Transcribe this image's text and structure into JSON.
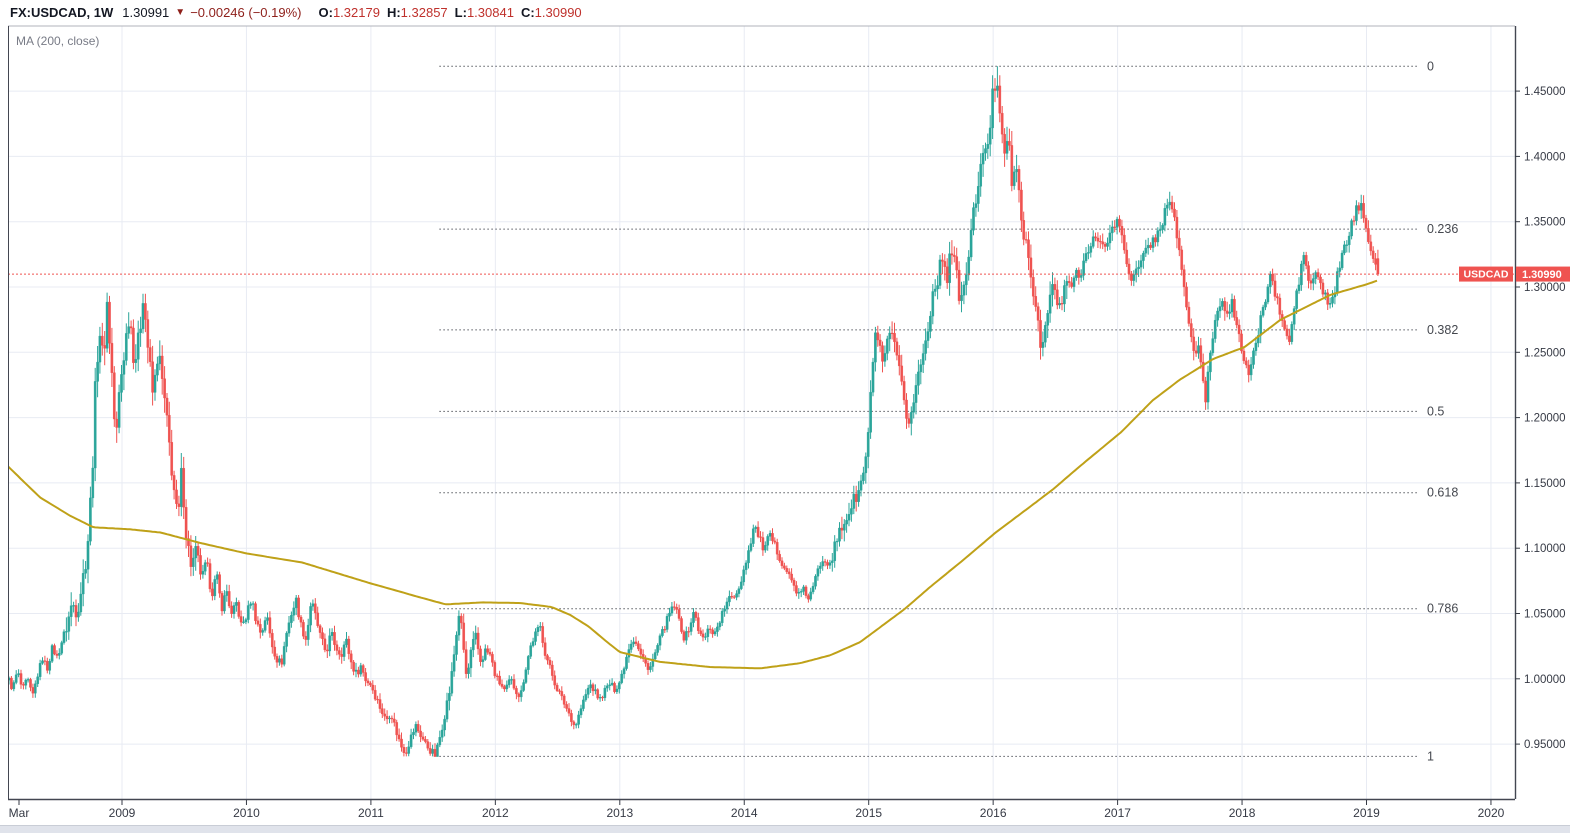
{
  "header": {
    "symbol_interval": "FX:USDCAD, 1W",
    "last_price": "1.30991",
    "direction_icon": "▼",
    "change": "−0.00246 (−0.19%)",
    "open_label": "O:",
    "open_value": "1.32179",
    "high_label": "H:",
    "high_value": "1.32857",
    "low_label": "L:",
    "low_value": "1.30841",
    "close_label": "C:",
    "close_value": "1.30990"
  },
  "legend": {
    "ma_label": "MA (200, close)"
  },
  "price_axis": {
    "current_badge_symbol": "USDCAD",
    "current_badge_value": "1.30990"
  },
  "colors": {
    "up": "#2ba59a",
    "down": "#ef5350",
    "ma": "#bfa118",
    "price_line": "#ef5350",
    "fib_line": "#55585f",
    "grid": "#e8ebf3",
    "axis_text": "#363a45",
    "fib_text": "#45484f",
    "frame_dark": "#434651",
    "frame_light": "#b0b3bb",
    "badge_bg": "#ef5350",
    "badge_text": "#ffffff"
  },
  "chart_data": {
    "type": "candlestick",
    "title": "FX:USDCAD weekly chart with MA(200, close) and Fibonacci retracement",
    "symbol": "FX:USDCAD",
    "interval": "1W",
    "x_axis": {
      "labels": [
        "Mar",
        "2009",
        "2010",
        "2011",
        "2012",
        "2013",
        "2014",
        "2015",
        "2016",
        "2017",
        "2018",
        "2019",
        "2020"
      ],
      "grid": true
    },
    "y_axis": {
      "tick_values": [
        1.45,
        1.4,
        1.35,
        1.3,
        1.25,
        1.2,
        1.15,
        1.1,
        1.05,
        1.0,
        0.95
      ],
      "decimals": 5,
      "grid": true,
      "position": "right"
    },
    "ylim": [
      0.908,
      1.5006
    ],
    "current_price": 1.3099,
    "last_ohlc": {
      "o": 1.32179,
      "h": 1.32857,
      "l": 1.30841,
      "c": 1.3099
    },
    "extremes": {
      "high": 1.469,
      "high_time": 2016.04,
      "low": 0.9406,
      "low_time": 2011.52
    },
    "fib_levels": [
      {
        "label": "0",
        "price": 1.469
      },
      {
        "label": "0.236",
        "price": 1.34428
      },
      {
        "label": "0.382",
        "price": 1.26713
      },
      {
        "label": "0.5",
        "price": 1.2048
      },
      {
        "label": "0.618",
        "price": 1.14247
      },
      {
        "label": "0.786",
        "price": 1.05367
      },
      {
        "label": "1",
        "price": 0.9406
      }
    ],
    "fib_span": {
      "start_time": 2011.55,
      "end_time": 2019.42
    },
    "ma200": [
      [
        2008.08,
        1.163
      ],
      [
        2008.34,
        1.139
      ],
      [
        2008.58,
        1.125
      ],
      [
        2008.77,
        1.116
      ],
      [
        2009.06,
        1.1145
      ],
      [
        2009.31,
        1.112
      ],
      [
        2009.63,
        1.104
      ],
      [
        2010.0,
        1.096
      ],
      [
        2010.45,
        1.089
      ],
      [
        2011.0,
        1.073
      ],
      [
        2011.39,
        1.0625
      ],
      [
        2011.6,
        1.057
      ],
      [
        2011.9,
        1.0585
      ],
      [
        2012.2,
        1.058
      ],
      [
        2012.45,
        1.055
      ],
      [
        2012.6,
        1.049
      ],
      [
        2012.75,
        1.04
      ],
      [
        2012.9,
        1.028
      ],
      [
        2013.0,
        1.0205
      ],
      [
        2013.32,
        1.013
      ],
      [
        2013.73,
        1.009
      ],
      [
        2014.13,
        1.008
      ],
      [
        2014.45,
        1.012
      ],
      [
        2014.69,
        1.018
      ],
      [
        2014.93,
        1.028
      ],
      [
        2015.29,
        1.0535
      ],
      [
        2015.49,
        1.07
      ],
      [
        2015.76,
        1.091
      ],
      [
        2016.02,
        1.112
      ],
      [
        2016.3,
        1.132
      ],
      [
        2016.48,
        1.145
      ],
      [
        2016.7,
        1.163
      ],
      [
        2017.03,
        1.189
      ],
      [
        2017.28,
        1.213
      ],
      [
        2017.5,
        1.229
      ],
      [
        2017.77,
        1.245
      ],
      [
        2018.02,
        1.254
      ],
      [
        2018.31,
        1.275
      ],
      [
        2018.71,
        1.294
      ],
      [
        2019.0,
        1.302
      ],
      [
        2019.09,
        1.305
      ]
    ],
    "close_path": [
      [
        2008.08,
        1.002
      ],
      [
        2008.12,
        0.992
      ],
      [
        2008.16,
        1.006
      ],
      [
        2008.2,
        0.991
      ],
      [
        2008.24,
        1.0
      ],
      [
        2008.28,
        0.986
      ],
      [
        2008.32,
        1.002
      ],
      [
        2008.36,
        1.016
      ],
      [
        2008.4,
        1.008
      ],
      [
        2008.44,
        1.024
      ],
      [
        2008.48,
        1.016
      ],
      [
        2008.52,
        1.03
      ],
      [
        2008.56,
        1.042
      ],
      [
        2008.6,
        1.058
      ],
      [
        2008.64,
        1.052
      ],
      [
        2008.68,
        1.074
      ],
      [
        2008.72,
        1.098
      ],
      [
        2008.76,
        1.155
      ],
      [
        2008.79,
        1.235
      ],
      [
        2008.82,
        1.268
      ],
      [
        2008.85,
        1.242
      ],
      [
        2008.88,
        1.288
      ],
      [
        2008.92,
        1.232
      ],
      [
        2008.95,
        1.178
      ],
      [
        2008.98,
        1.222
      ],
      [
        2009.02,
        1.252
      ],
      [
        2009.06,
        1.282
      ],
      [
        2009.1,
        1.242
      ],
      [
        2009.14,
        1.262
      ],
      [
        2009.17,
        1.296
      ],
      [
        2009.21,
        1.252
      ],
      [
        2009.25,
        1.215
      ],
      [
        2009.29,
        1.252
      ],
      [
        2009.33,
        1.222
      ],
      [
        2009.37,
        1.188
      ],
      [
        2009.41,
        1.152
      ],
      [
        2009.45,
        1.118
      ],
      [
        2009.48,
        1.16
      ],
      [
        2009.52,
        1.106
      ],
      [
        2009.56,
        1.086
      ],
      [
        2009.6,
        1.098
      ],
      [
        2009.64,
        1.076
      ],
      [
        2009.68,
        1.09
      ],
      [
        2009.72,
        1.064
      ],
      [
        2009.76,
        1.08
      ],
      [
        2009.8,
        1.054
      ],
      [
        2009.84,
        1.068
      ],
      [
        2009.88,
        1.048
      ],
      [
        2009.92,
        1.058
      ],
      [
        2009.96,
        1.04
      ],
      [
        2010.0,
        1.048
      ],
      [
        2010.04,
        1.062
      ],
      [
        2010.08,
        1.044
      ],
      [
        2010.12,
        1.034
      ],
      [
        2010.16,
        1.05
      ],
      [
        2010.2,
        1.028
      ],
      [
        2010.24,
        1.016
      ],
      [
        2010.28,
        1.011
      ],
      [
        2010.32,
        1.034
      ],
      [
        2010.36,
        1.05
      ],
      [
        2010.4,
        1.06
      ],
      [
        2010.44,
        1.04
      ],
      [
        2010.48,
        1.03
      ],
      [
        2010.52,
        1.06
      ],
      [
        2010.56,
        1.046
      ],
      [
        2010.6,
        1.03
      ],
      [
        2010.64,
        1.02
      ],
      [
        2010.68,
        1.035
      ],
      [
        2010.72,
        1.024
      ],
      [
        2010.76,
        1.019
      ],
      [
        2010.8,
        1.03
      ],
      [
        2010.84,
        1.013
      ],
      [
        2010.88,
        1.004
      ],
      [
        2010.92,
        1.01
      ],
      [
        2010.96,
        0.999
      ],
      [
        2011.0,
        0.996
      ],
      [
        2011.04,
        0.986
      ],
      [
        2011.08,
        0.977
      ],
      [
        2011.12,
        0.968
      ],
      [
        2011.16,
        0.975
      ],
      [
        2011.2,
        0.961
      ],
      [
        2011.24,
        0.949
      ],
      [
        2011.28,
        0.944
      ],
      [
        2011.32,
        0.955
      ],
      [
        2011.36,
        0.964
      ],
      [
        2011.4,
        0.957
      ],
      [
        2011.44,
        0.95
      ],
      [
        2011.48,
        0.945
      ],
      [
        2011.52,
        0.941
      ],
      [
        2011.56,
        0.958
      ],
      [
        2011.6,
        0.976
      ],
      [
        2011.64,
        0.995
      ],
      [
        2011.68,
        1.028
      ],
      [
        2011.71,
        1.052
      ],
      [
        2011.74,
        1.028
      ],
      [
        2011.77,
        0.998
      ],
      [
        2011.8,
        1.018
      ],
      [
        2011.84,
        1.032
      ],
      [
        2011.88,
        1.014
      ],
      [
        2011.92,
        1.022
      ],
      [
        2011.96,
        1.018
      ],
      [
        2012.0,
        1.002
      ],
      [
        2012.04,
        0.996
      ],
      [
        2012.08,
        0.99
      ],
      [
        2012.12,
        1.0
      ],
      [
        2012.16,
        0.992
      ],
      [
        2012.2,
        0.986
      ],
      [
        2012.24,
        1.006
      ],
      [
        2012.28,
        1.024
      ],
      [
        2012.32,
        1.034
      ],
      [
        2012.36,
        1.04
      ],
      [
        2012.4,
        1.02
      ],
      [
        2012.44,
        1.008
      ],
      [
        2012.48,
        0.996
      ],
      [
        2012.52,
        0.988
      ],
      [
        2012.56,
        0.98
      ],
      [
        2012.6,
        0.972
      ],
      [
        2012.64,
        0.963
      ],
      [
        2012.68,
        0.975
      ],
      [
        2012.72,
        0.986
      ],
      [
        2012.76,
        0.996
      ],
      [
        2012.8,
        0.99
      ],
      [
        2012.84,
        0.984
      ],
      [
        2012.88,
        0.991
      ],
      [
        2012.92,
        0.996
      ],
      [
        2012.96,
        0.992
      ],
      [
        2013.0,
        0.998
      ],
      [
        2013.04,
        1.012
      ],
      [
        2013.08,
        1.027
      ],
      [
        2013.12,
        1.031
      ],
      [
        2013.16,
        1.02
      ],
      [
        2013.2,
        1.012
      ],
      [
        2013.24,
        1.008
      ],
      [
        2013.28,
        1.018
      ],
      [
        2013.32,
        1.03
      ],
      [
        2013.36,
        1.04
      ],
      [
        2013.4,
        1.05
      ],
      [
        2013.44,
        1.056
      ],
      [
        2013.48,
        1.044
      ],
      [
        2013.52,
        1.03
      ],
      [
        2013.56,
        1.04
      ],
      [
        2013.6,
        1.052
      ],
      [
        2013.64,
        1.034
      ],
      [
        2013.68,
        1.03
      ],
      [
        2013.72,
        1.04
      ],
      [
        2013.76,
        1.034
      ],
      [
        2013.8,
        1.044
      ],
      [
        2013.84,
        1.054
      ],
      [
        2013.88,
        1.061
      ],
      [
        2013.92,
        1.064
      ],
      [
        2013.96,
        1.07
      ],
      [
        2014.0,
        1.085
      ],
      [
        2014.04,
        1.1
      ],
      [
        2014.08,
        1.118
      ],
      [
        2014.12,
        1.108
      ],
      [
        2014.16,
        1.098
      ],
      [
        2014.2,
        1.11
      ],
      [
        2014.24,
        1.103
      ],
      [
        2014.28,
        1.094
      ],
      [
        2014.32,
        1.086
      ],
      [
        2014.36,
        1.079
      ],
      [
        2014.4,
        1.071
      ],
      [
        2014.44,
        1.064
      ],
      [
        2014.48,
        1.068
      ],
      [
        2014.52,
        1.061
      ],
      [
        2014.56,
        1.072
      ],
      [
        2014.6,
        1.086
      ],
      [
        2014.64,
        1.093
      ],
      [
        2014.68,
        1.088
      ],
      [
        2014.72,
        1.098
      ],
      [
        2014.76,
        1.11
      ],
      [
        2014.8,
        1.119
      ],
      [
        2014.84,
        1.128
      ],
      [
        2014.88,
        1.136
      ],
      [
        2014.92,
        1.143
      ],
      [
        2014.96,
        1.158
      ],
      [
        2015.0,
        1.188
      ],
      [
        2015.03,
        1.242
      ],
      [
        2015.06,
        1.268
      ],
      [
        2015.09,
        1.25
      ],
      [
        2015.12,
        1.236
      ],
      [
        2015.15,
        1.256
      ],
      [
        2015.18,
        1.268
      ],
      [
        2015.21,
        1.251
      ],
      [
        2015.24,
        1.237
      ],
      [
        2015.27,
        1.22
      ],
      [
        2015.3,
        1.204
      ],
      [
        2015.33,
        1.196
      ],
      [
        2015.36,
        1.213
      ],
      [
        2015.39,
        1.228
      ],
      [
        2015.42,
        1.243
      ],
      [
        2015.45,
        1.253
      ],
      [
        2015.48,
        1.273
      ],
      [
        2015.51,
        1.293
      ],
      [
        2015.54,
        1.303
      ],
      [
        2015.57,
        1.313
      ],
      [
        2015.6,
        1.326
      ],
      [
        2015.63,
        1.308
      ],
      [
        2015.66,
        1.333
      ],
      [
        2015.69,
        1.318
      ],
      [
        2015.72,
        1.298
      ],
      [
        2015.75,
        1.288
      ],
      [
        2015.78,
        1.308
      ],
      [
        2015.81,
        1.331
      ],
      [
        2015.84,
        1.353
      ],
      [
        2015.87,
        1.376
      ],
      [
        2015.9,
        1.393
      ],
      [
        2015.94,
        1.402
      ],
      [
        2015.97,
        1.418
      ],
      [
        2016.0,
        1.45
      ],
      [
        2016.03,
        1.462
      ],
      [
        2016.06,
        1.432
      ],
      [
        2016.09,
        1.406
      ],
      [
        2016.12,
        1.413
      ],
      [
        2016.15,
        1.381
      ],
      [
        2016.18,
        1.392
      ],
      [
        2016.21,
        1.368
      ],
      [
        2016.24,
        1.347
      ],
      [
        2016.27,
        1.327
      ],
      [
        2016.3,
        1.307
      ],
      [
        2016.33,
        1.291
      ],
      [
        2016.36,
        1.277
      ],
      [
        2016.39,
        1.252
      ],
      [
        2016.42,
        1.268
      ],
      [
        2016.45,
        1.288
      ],
      [
        2016.48,
        1.303
      ],
      [
        2016.51,
        1.29
      ],
      [
        2016.54,
        1.281
      ],
      [
        2016.57,
        1.296
      ],
      [
        2016.6,
        1.306
      ],
      [
        2016.63,
        1.3
      ],
      [
        2016.66,
        1.311
      ],
      [
        2016.69,
        1.306
      ],
      [
        2016.72,
        1.317
      ],
      [
        2016.76,
        1.329
      ],
      [
        2016.8,
        1.339
      ],
      [
        2016.84,
        1.334
      ],
      [
        2016.88,
        1.33
      ],
      [
        2016.92,
        1.336
      ],
      [
        2016.96,
        1.346
      ],
      [
        2017.0,
        1.35
      ],
      [
        2017.04,
        1.338
      ],
      [
        2017.08,
        1.315
      ],
      [
        2017.12,
        1.306
      ],
      [
        2017.16,
        1.313
      ],
      [
        2017.2,
        1.321
      ],
      [
        2017.24,
        1.331
      ],
      [
        2017.28,
        1.335
      ],
      [
        2017.32,
        1.34
      ],
      [
        2017.36,
        1.35
      ],
      [
        2017.4,
        1.366
      ],
      [
        2017.44,
        1.356
      ],
      [
        2017.47,
        1.345
      ],
      [
        2017.5,
        1.326
      ],
      [
        2017.53,
        1.301
      ],
      [
        2017.56,
        1.281
      ],
      [
        2017.59,
        1.261
      ],
      [
        2017.62,
        1.25
      ],
      [
        2017.65,
        1.252
      ],
      [
        2017.68,
        1.231
      ],
      [
        2017.71,
        1.213
      ],
      [
        2017.74,
        1.248
      ],
      [
        2017.77,
        1.266
      ],
      [
        2017.8,
        1.281
      ],
      [
        2017.83,
        1.291
      ],
      [
        2017.86,
        1.286
      ],
      [
        2017.89,
        1.282
      ],
      [
        2017.92,
        1.288
      ],
      [
        2017.95,
        1.271
      ],
      [
        2017.98,
        1.258
      ],
      [
        2018.02,
        1.246
      ],
      [
        2018.05,
        1.233
      ],
      [
        2018.08,
        1.242
      ],
      [
        2018.11,
        1.256
      ],
      [
        2018.14,
        1.27
      ],
      [
        2018.17,
        1.284
      ],
      [
        2018.2,
        1.298
      ],
      [
        2018.23,
        1.311
      ],
      [
        2018.26,
        1.296
      ],
      [
        2018.29,
        1.286
      ],
      [
        2018.32,
        1.276
      ],
      [
        2018.35,
        1.263
      ],
      [
        2018.38,
        1.258
      ],
      [
        2018.41,
        1.278
      ],
      [
        2018.44,
        1.296
      ],
      [
        2018.47,
        1.311
      ],
      [
        2018.5,
        1.327
      ],
      [
        2018.53,
        1.306
      ],
      [
        2018.56,
        1.301
      ],
      [
        2018.59,
        1.311
      ],
      [
        2018.62,
        1.306
      ],
      [
        2018.65,
        1.296
      ],
      [
        2018.68,
        1.291
      ],
      [
        2018.71,
        1.283
      ],
      [
        2018.74,
        1.296
      ],
      [
        2018.77,
        1.311
      ],
      [
        2018.8,
        1.322
      ],
      [
        2018.83,
        1.331
      ],
      [
        2018.86,
        1.341
      ],
      [
        2018.89,
        1.351
      ],
      [
        2018.93,
        1.361
      ],
      [
        2018.96,
        1.363
      ],
      [
        2019.0,
        1.347
      ],
      [
        2019.03,
        1.328
      ],
      [
        2019.06,
        1.322
      ],
      [
        2019.09,
        1.31
      ]
    ]
  }
}
